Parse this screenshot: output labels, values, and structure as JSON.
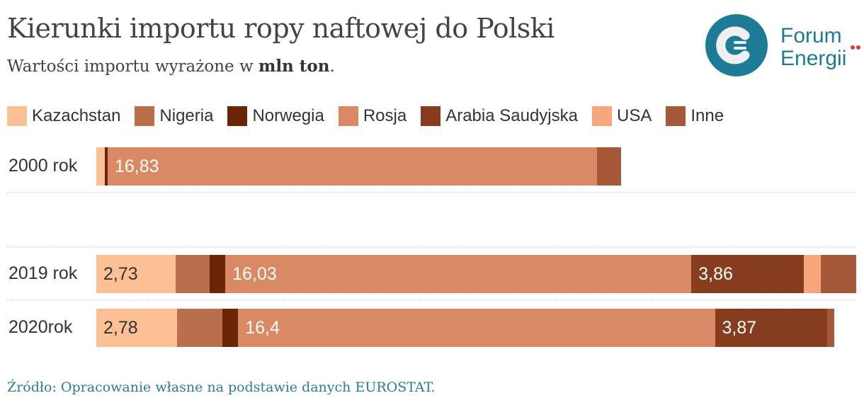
{
  "header": {
    "title": "Kierunki importu ropy naftowej do Polski",
    "subtitle_prefix": "Wartości importu wyrażone w ",
    "subtitle_bold": "mln ton",
    "subtitle_suffix": "."
  },
  "logo": {
    "line1": "Forum",
    "line2": "Energii",
    "color": "#1d7b95"
  },
  "source": "Źródło: Opracowanie własne na podstawie danych EUROSTAT.",
  "chart_data": {
    "type": "bar",
    "orientation": "horizontal-stacked",
    "title": "Kierunki importu ropy naftowej do Polski",
    "unit": "mln ton",
    "categories": [
      "2000 rok",
      "2019 rok",
      "2020rok"
    ],
    "series": [
      {
        "name": "Kazachstan",
        "color": "#fdbf94",
        "label_color": "#333333",
        "values": [
          0.29,
          2.73,
          2.78
        ],
        "labels": [
          "",
          "2,73",
          "2,78"
        ]
      },
      {
        "name": "Nigeria",
        "color": "#bc6f4c",
        "label_color": "#ffffff",
        "values": [
          0,
          1.17,
          1.56
        ],
        "labels": [
          "",
          "",
          ""
        ]
      },
      {
        "name": "Norwegia",
        "color": "#692505",
        "label_color": "#ffffff",
        "values": [
          0.1,
          0.54,
          0.54
        ],
        "labels": [
          "",
          "",
          ""
        ]
      },
      {
        "name": "Rosja",
        "color": "#d98a65",
        "label_color": "#ffffff",
        "values": [
          16.83,
          16.03,
          16.4
        ],
        "labels": [
          "16,83",
          "16,03",
          "16,4"
        ]
      },
      {
        "name": "Arabia Saudyjska",
        "color": "#863d1d",
        "label_color": "#ffffff",
        "values": [
          0,
          3.86,
          3.87
        ],
        "labels": [
          "",
          "3,86",
          "3,87"
        ]
      },
      {
        "name": "USA",
        "color": "#f8a77c",
        "label_color": "#ffffff",
        "values": [
          0,
          0.59,
          0
        ],
        "labels": [
          "",
          "",
          ""
        ]
      },
      {
        "name": "Inne",
        "color": "#a65938",
        "label_color": "#ffffff",
        "values": [
          0.83,
          1.22,
          0.24
        ],
        "labels": [
          "",
          "",
          ""
        ]
      }
    ],
    "legend": "top-left",
    "grid": false
  }
}
